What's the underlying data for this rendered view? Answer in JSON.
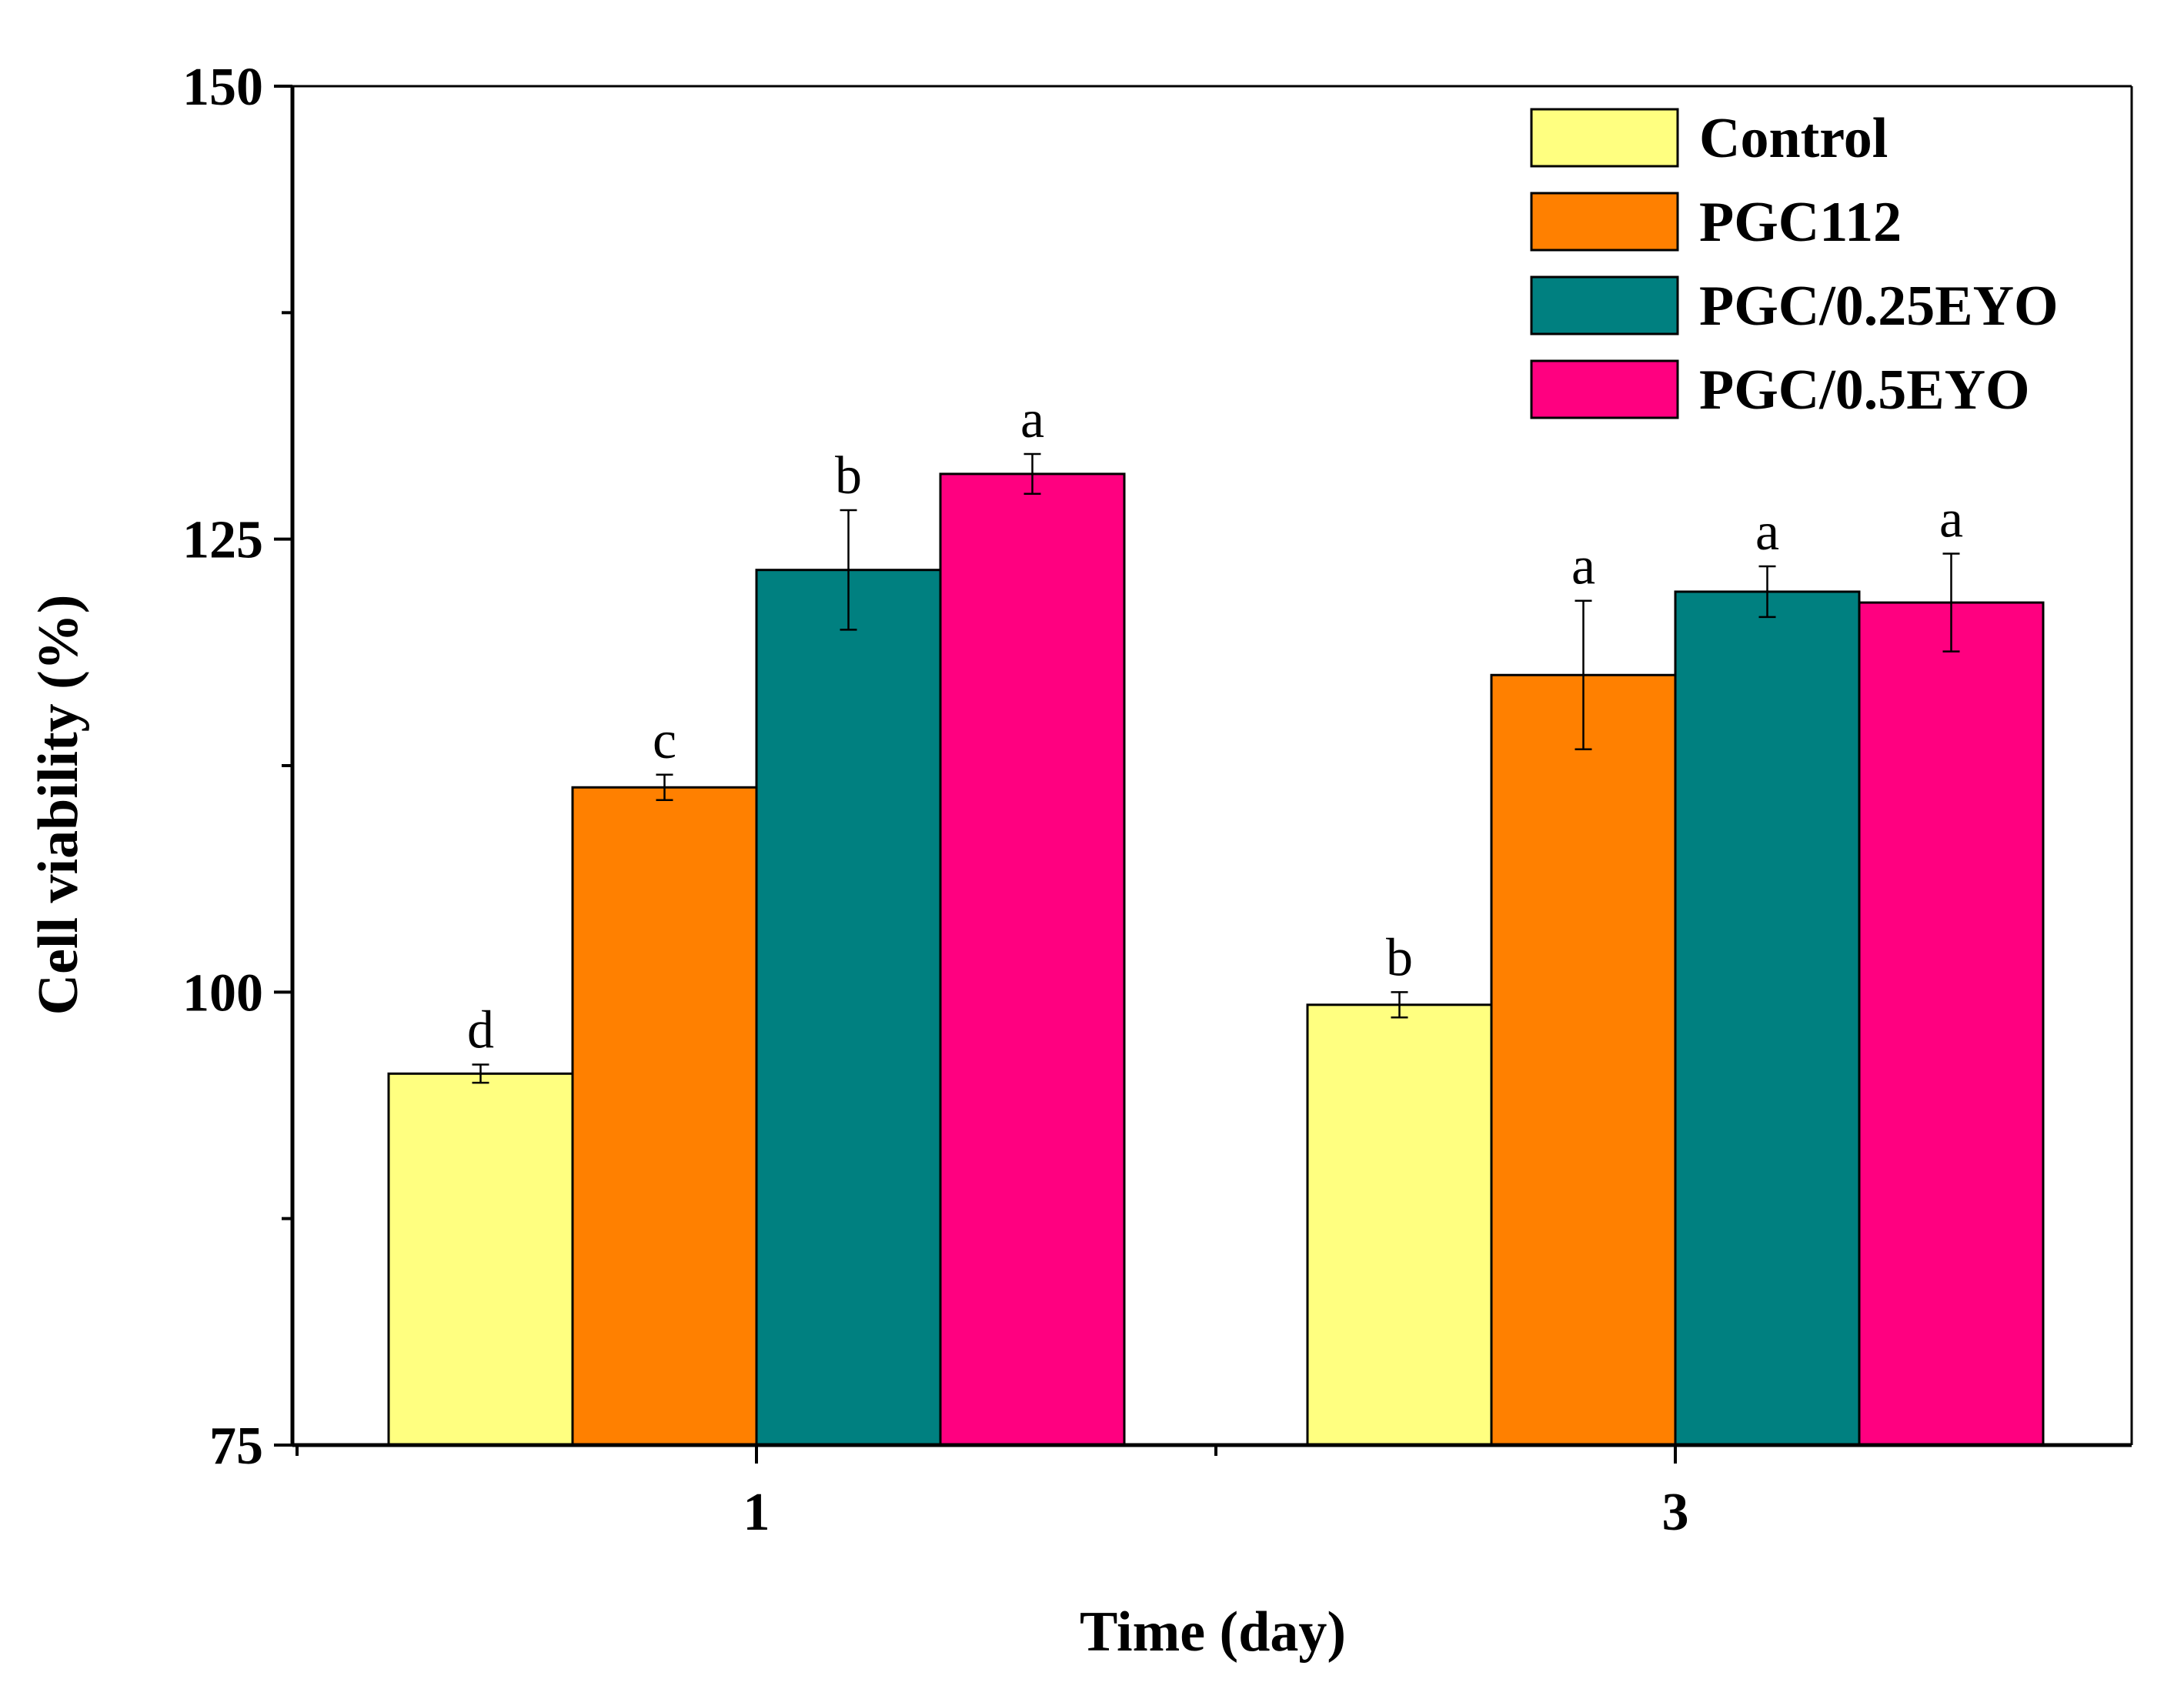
{
  "chart_data": {
    "type": "bar",
    "title": "",
    "xlabel": "Time (day)",
    "ylabel": "Cell viability (%)",
    "ylim": [
      75,
      150
    ],
    "yticks": [
      75,
      100,
      125,
      150
    ],
    "grid": false,
    "legend_position": "top-right",
    "categories": [
      "1",
      "3"
    ],
    "series": [
      {
        "name": "Control",
        "color": "#FFFF80",
        "values": [
          95.5,
          99.3
        ],
        "errors": [
          0.5,
          0.7
        ],
        "letters": [
          "d",
          "b"
        ]
      },
      {
        "name": "PGC112",
        "color": "#FF8000",
        "values": [
          111.3,
          117.5
        ],
        "errors": [
          0.7,
          4.1
        ],
        "letters": [
          "c",
          "a"
        ]
      },
      {
        "name": "PGC/0.25EYO",
        "color": "#008080",
        "values": [
          123.3,
          122.1
        ],
        "errors": [
          3.3,
          1.4
        ],
        "letters": [
          "b",
          "a"
        ]
      },
      {
        "name": "PGC/0.5EYO",
        "color": "#FF0080",
        "values": [
          128.6,
          121.5
        ],
        "errors": [
          1.1,
          2.7
        ],
        "letters": [
          "a",
          "a"
        ]
      }
    ]
  }
}
